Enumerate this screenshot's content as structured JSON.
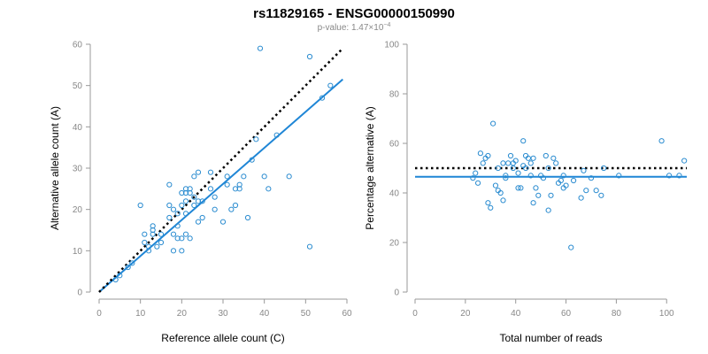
{
  "figure": {
    "title": "rs11829165 - ENSG00000150990",
    "subtitle": "p-value: 1.47×10",
    "subtitle_exp": "−4"
  },
  "chart_data": [
    {
      "type": "scatter",
      "xlabel": "Reference allele count (C)",
      "ylabel": "Alternative allele count (A)",
      "xlim": [
        0,
        60
      ],
      "ylim": [
        0,
        60
      ],
      "xticks": [
        0,
        10,
        20,
        30,
        40,
        50,
        60
      ],
      "yticks": [
        0,
        10,
        20,
        30,
        40,
        50,
        60
      ],
      "grid": false,
      "points": [
        [
          4,
          3
        ],
        [
          5,
          4
        ],
        [
          7,
          6
        ],
        [
          8,
          7
        ],
        [
          10,
          21
        ],
        [
          11,
          12
        ],
        [
          11,
          14
        ],
        [
          12,
          10
        ],
        [
          12,
          11
        ],
        [
          13,
          14
        ],
        [
          13,
          15
        ],
        [
          13,
          16
        ],
        [
          14,
          11
        ],
        [
          15,
          12
        ],
        [
          15,
          14
        ],
        [
          17,
          26
        ],
        [
          17,
          21
        ],
        [
          17,
          18
        ],
        [
          18,
          10
        ],
        [
          18,
          14
        ],
        [
          18,
          20
        ],
        [
          19,
          16
        ],
        [
          19,
          19
        ],
        [
          19,
          13
        ],
        [
          20,
          21
        ],
        [
          20,
          24
        ],
        [
          20,
          13
        ],
        [
          20,
          10
        ],
        [
          21,
          14
        ],
        [
          21,
          24
        ],
        [
          21,
          22
        ],
        [
          21,
          19
        ],
        [
          21,
          25
        ],
        [
          22,
          25
        ],
        [
          22,
          24
        ],
        [
          22,
          13
        ],
        [
          23,
          23
        ],
        [
          23,
          21
        ],
        [
          23,
          28
        ],
        [
          24,
          29
        ],
        [
          24,
          22
        ],
        [
          24,
          17
        ],
        [
          25,
          22
        ],
        [
          25,
          18
        ],
        [
          27,
          29
        ],
        [
          27,
          25
        ],
        [
          28,
          23
        ],
        [
          28,
          20
        ],
        [
          30,
          17
        ],
        [
          31,
          28
        ],
        [
          31,
          26
        ],
        [
          32,
          20
        ],
        [
          33,
          21
        ],
        [
          33,
          25
        ],
        [
          34,
          25
        ],
        [
          34,
          26
        ],
        [
          35,
          28
        ],
        [
          36,
          18
        ],
        [
          37,
          32
        ],
        [
          38,
          37
        ],
        [
          39,
          59
        ],
        [
          40,
          28
        ],
        [
          41,
          25
        ],
        [
          43,
          38
        ],
        [
          46,
          28
        ],
        [
          51,
          57
        ],
        [
          51,
          11
        ],
        [
          54,
          47
        ],
        [
          56,
          50
        ]
      ],
      "fit_line": {
        "x": [
          0,
          59
        ],
        "y": [
          0,
          51.5
        ]
      },
      "reference_line": {
        "x": [
          0,
          59
        ],
        "y": [
          0,
          59
        ]
      }
    },
    {
      "type": "scatter",
      "xlabel": "Total number of reads",
      "ylabel": "Percentage alternative (A)",
      "xlim": [
        0,
        108
      ],
      "ylim": [
        0,
        100
      ],
      "xticks": [
        0,
        20,
        40,
        60,
        80,
        100
      ],
      "yticks": [
        0,
        20,
        40,
        60,
        80,
        100
      ],
      "grid": false,
      "points": [
        [
          23,
          46
        ],
        [
          24,
          48
        ],
        [
          25,
          44
        ],
        [
          26,
          56
        ],
        [
          27,
          52
        ],
        [
          28,
          54
        ],
        [
          29,
          55
        ],
        [
          29,
          36
        ],
        [
          30,
          34
        ],
        [
          31,
          68
        ],
        [
          32,
          43
        ],
        [
          33,
          41
        ],
        [
          33,
          50
        ],
        [
          34,
          40
        ],
        [
          35,
          52
        ],
        [
          35,
          37
        ],
        [
          36,
          47
        ],
        [
          36,
          46
        ],
        [
          37,
          52
        ],
        [
          38,
          55
        ],
        [
          39,
          52
        ],
        [
          39,
          50
        ],
        [
          40,
          53
        ],
        [
          41,
          42
        ],
        [
          41,
          48
        ],
        [
          42,
          42
        ],
        [
          43,
          61
        ],
        [
          43,
          51
        ],
        [
          44,
          55
        ],
        [
          44,
          50
        ],
        [
          45,
          54
        ],
        [
          46,
          52
        ],
        [
          46,
          47
        ],
        [
          47,
          54
        ],
        [
          47,
          36
        ],
        [
          48,
          42
        ],
        [
          49,
          39
        ],
        [
          50,
          47
        ],
        [
          51,
          46
        ],
        [
          52,
          55
        ],
        [
          53,
          50
        ],
        [
          53,
          33
        ],
        [
          54,
          39
        ],
        [
          55,
          54
        ],
        [
          56,
          52
        ],
        [
          57,
          44
        ],
        [
          58,
          45
        ],
        [
          59,
          47
        ],
        [
          59,
          42
        ],
        [
          60,
          43
        ],
        [
          62,
          18
        ],
        [
          63,
          45
        ],
        [
          66,
          38
        ],
        [
          67,
          49
        ],
        [
          68,
          41
        ],
        [
          70,
          46
        ],
        [
          72,
          41
        ],
        [
          74,
          39
        ],
        [
          75,
          50
        ],
        [
          81,
          47
        ],
        [
          98,
          61
        ],
        [
          101,
          47
        ],
        [
          105,
          47
        ],
        [
          107,
          53
        ]
      ],
      "fit_line": {
        "x": [
          0,
          108
        ],
        "y": [
          46.5,
          46.5
        ]
      },
      "reference_line": {
        "x": [
          0,
          108
        ],
        "y": [
          50,
          50
        ]
      }
    }
  ]
}
